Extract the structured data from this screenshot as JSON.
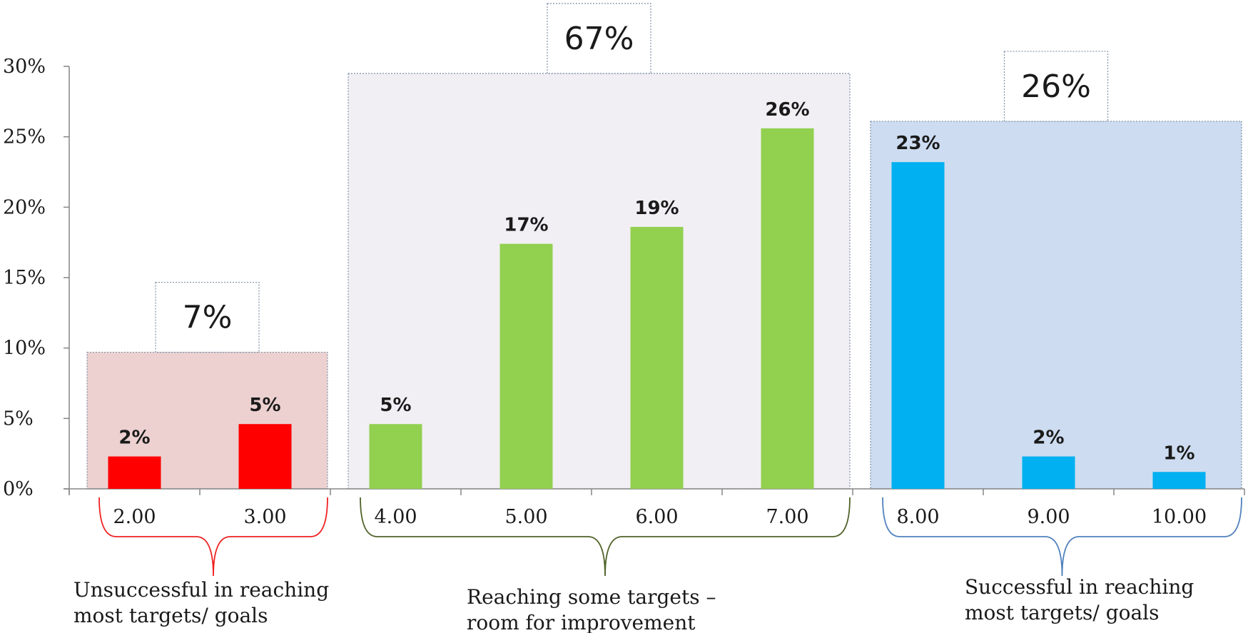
{
  "chart_data": {
    "type": "bar",
    "categories": [
      "2.00",
      "3.00",
      "4.00",
      "5.00",
      "6.00",
      "7.00",
      "8.00",
      "9.00",
      "10.00"
    ],
    "values": [
      2.3,
      4.6,
      4.6,
      17.4,
      18.6,
      25.6,
      23.2,
      2.3,
      1.2
    ],
    "data_labels": [
      "2%",
      "5%",
      "5%",
      "17%",
      "19%",
      "26%",
      "23%",
      "2%",
      "1%"
    ],
    "ylim": [
      0,
      30
    ],
    "yticks": [
      0,
      5,
      10,
      15,
      20,
      25,
      30
    ],
    "ytick_labels": [
      "0%",
      "5%",
      "10%",
      "15%",
      "20%",
      "25%",
      "30%"
    ],
    "grid": false,
    "groups": [
      {
        "id": "unsuccessful",
        "start": 0,
        "end": 1,
        "total": "7%",
        "total_value": 9.7,
        "caption_lines": [
          "Unsuccessful in reaching",
          "most targets/ goals"
        ],
        "bar_color": "#ff0000",
        "box_fill": "#ecd1d0",
        "brace_color": "#ee2222"
      },
      {
        "id": "some-targets",
        "start": 2,
        "end": 5,
        "total": "67%",
        "total_value": 29.5,
        "caption_lines": [
          "Reaching some targets –",
          "room for improvement"
        ],
        "bar_color": "#92d050",
        "box_fill": "#f1eff4",
        "brace_color": "#4f6228"
      },
      {
        "id": "successful",
        "start": 6,
        "end": 8,
        "total": "26%",
        "total_value": 26.1,
        "caption_lines": [
          "Successful in reaching",
          "most targets/ goals"
        ],
        "bar_color": "#00b0f0",
        "box_fill": "#cddcf0",
        "brace_color": "#4f81bd"
      }
    ]
  }
}
